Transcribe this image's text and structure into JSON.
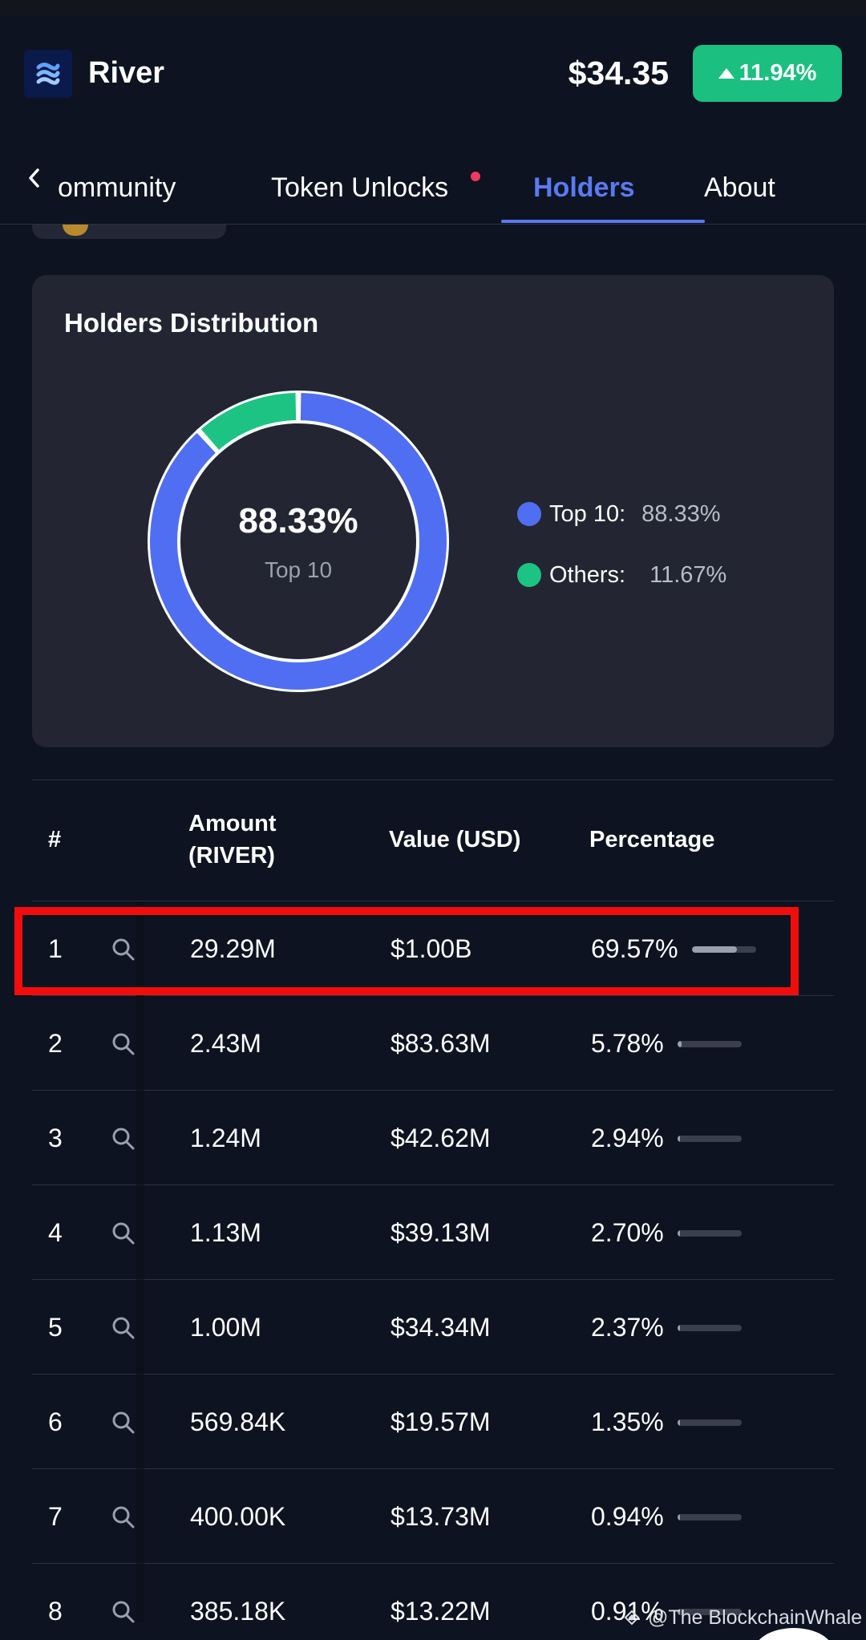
{
  "header": {
    "app_name": "River",
    "price": "$34.35",
    "change": "11.94%",
    "change_color": "#1bbf80"
  },
  "tabs": [
    {
      "label": "ommunity"
    },
    {
      "label": "Token Unlocks"
    },
    {
      "label": "Holders",
      "active": true
    },
    {
      "label": "About"
    }
  ],
  "distribution": {
    "title": "Holders Distribution",
    "center_value": "88.33%",
    "center_label": "Top 10",
    "legend": [
      {
        "label": "Top 10:",
        "value": "88.33%",
        "color": "#4f6ef2"
      },
      {
        "label": "Others:",
        "value": "11.67%",
        "color": "#1dc383"
      }
    ]
  },
  "table": {
    "headers": {
      "rank": "#",
      "amount": "Amount (RIVER)",
      "value": "Value (USD)",
      "percentage": "Percentage"
    },
    "rows": [
      {
        "rank": "1",
        "amount": "29.29M",
        "value": "$1.00B",
        "percentage": "69.57%",
        "share": 0.6957
      },
      {
        "rank": "2",
        "amount": "2.43M",
        "value": "$83.63M",
        "percentage": "5.78%",
        "share": 0.0578
      },
      {
        "rank": "3",
        "amount": "1.24M",
        "value": "$42.62M",
        "percentage": "2.94%",
        "share": 0.0294
      },
      {
        "rank": "4",
        "amount": "1.13M",
        "value": "$39.13M",
        "percentage": "2.70%",
        "share": 0.027
      },
      {
        "rank": "5",
        "amount": "1.00M",
        "value": "$34.34M",
        "percentage": "2.37%",
        "share": 0.0237
      },
      {
        "rank": "6",
        "amount": "569.84K",
        "value": "$19.57M",
        "percentage": "1.35%",
        "share": 0.0135
      },
      {
        "rank": "7",
        "amount": "400.00K",
        "value": "$13.73M",
        "percentage": "0.94%",
        "share": 0.0094
      },
      {
        "rank": "8",
        "amount": "385.18K",
        "value": "$13.22M",
        "percentage": "0.91%",
        "share": 0.0091
      }
    ]
  },
  "watermark": "@The BlockchainWhale"
}
